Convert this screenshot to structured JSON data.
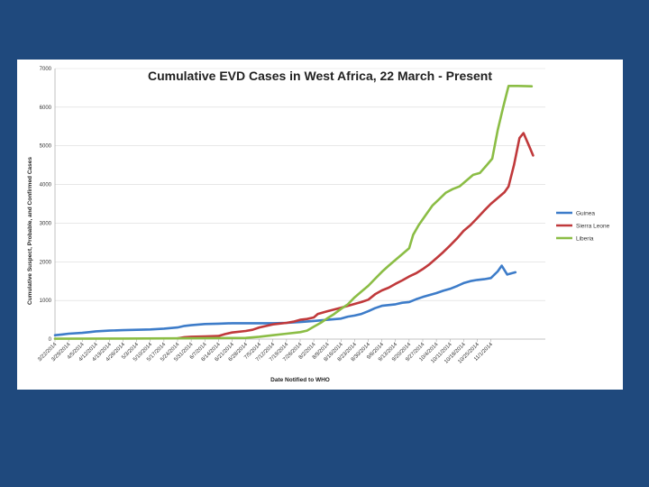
{
  "colors": {
    "background": "#1f497d",
    "card": "#ffffff",
    "guinea": "#3d7cc9",
    "sierra_leone": "#c0393b",
    "liberia": "#8bbd45"
  },
  "chart_data": {
    "type": "line",
    "title": "Cumulative EVD Cases in West Africa, 22 March - Present",
    "xlabel": "Date Notified to WHO",
    "ylabel": "Cumulative Suspect, Probable, and Confirmed Cases",
    "ylim": [
      0,
      7000
    ],
    "yticks": [
      "0",
      "1000",
      "2000",
      "3000",
      "4000",
      "5000",
      "6000",
      "7000"
    ],
    "x_tick_labels": [
      "3/22/2014",
      "3/29/2014",
      "4/5/2014",
      "4/12/2014",
      "4/19/2014",
      "4/26/2014",
      "5/3/2014",
      "5/10/2014",
      "5/17/2014",
      "5/24/2014",
      "5/31/2014",
      "6/7/2014",
      "6/14/2014",
      "6/21/2014",
      "6/28/2014",
      "7/5/2014",
      "7/12/2014",
      "7/19/2014",
      "7/26/2014",
      "8/2/2014",
      "8/9/2014",
      "8/16/2014",
      "8/23/2014",
      "8/30/2014",
      "9/6/2014",
      "9/13/2014",
      "9/20/2014",
      "9/27/2014",
      "10/4/2014",
      "10/11/2014",
      "10/18/2014",
      "10/25/2014",
      "11/1/2014"
    ],
    "legend_position": "right",
    "series": [
      {
        "name": "Guinea",
        "color": "#3d7cc9",
        "points": [
          [
            0,
            100
          ],
          [
            0.5,
            120
          ],
          [
            1,
            140
          ],
          [
            2,
            160
          ],
          [
            2.5,
            180
          ],
          [
            3,
            200
          ],
          [
            4,
            220
          ],
          [
            5,
            230
          ],
          [
            6,
            240
          ],
          [
            7,
            250
          ],
          [
            8,
            270
          ],
          [
            9,
            300
          ],
          [
            9.5,
            340
          ],
          [
            10,
            360
          ],
          [
            11,
            390
          ],
          [
            12,
            400
          ],
          [
            13,
            410
          ],
          [
            14,
            410
          ],
          [
            15,
            410
          ],
          [
            16,
            410
          ],
          [
            17,
            420
          ],
          [
            18,
            440
          ],
          [
            19,
            470
          ],
          [
            20,
            500
          ],
          [
            21,
            530
          ],
          [
            21.5,
            580
          ],
          [
            22,
            610
          ],
          [
            22.5,
            650
          ],
          [
            23,
            720
          ],
          [
            23.5,
            800
          ],
          [
            24,
            860
          ],
          [
            25,
            900
          ],
          [
            25.5,
            940
          ],
          [
            26,
            960
          ],
          [
            26.5,
            1030
          ],
          [
            27,
            1090
          ],
          [
            28,
            1190
          ],
          [
            28.5,
            1250
          ],
          [
            29,
            1300
          ],
          [
            29.5,
            1370
          ],
          [
            30,
            1450
          ],
          [
            30.5,
            1500
          ],
          [
            31,
            1530
          ],
          [
            31.5,
            1550
          ],
          [
            32,
            1580
          ],
          [
            32.5,
            1750
          ],
          [
            32.8,
            1900
          ],
          [
            33.2,
            1670
          ],
          [
            33.8,
            1730
          ]
        ]
      },
      {
        "name": "Sierra Leone",
        "color": "#c0393b",
        "points": [
          [
            9,
            20
          ],
          [
            9.5,
            50
          ],
          [
            10,
            60
          ],
          [
            11,
            70
          ],
          [
            12,
            80
          ],
          [
            12.5,
            130
          ],
          [
            13,
            170
          ],
          [
            14,
            210
          ],
          [
            14.5,
            240
          ],
          [
            15,
            300
          ],
          [
            16,
            380
          ],
          [
            17,
            420
          ],
          [
            17.5,
            450
          ],
          [
            18,
            500
          ],
          [
            18.5,
            520
          ],
          [
            19,
            560
          ],
          [
            19.3,
            650
          ],
          [
            20,
            720
          ],
          [
            21,
            810
          ],
          [
            21.5,
            860
          ],
          [
            22,
            910
          ],
          [
            22.5,
            960
          ],
          [
            23,
            1020
          ],
          [
            23.5,
            1160
          ],
          [
            24,
            1260
          ],
          [
            24.5,
            1330
          ],
          [
            25,
            1430
          ],
          [
            25.5,
            1520
          ],
          [
            26,
            1620
          ],
          [
            26.5,
            1700
          ],
          [
            27,
            1810
          ],
          [
            27.5,
            1940
          ],
          [
            28,
            2090
          ],
          [
            28.5,
            2250
          ],
          [
            29,
            2420
          ],
          [
            29.5,
            2600
          ],
          [
            30,
            2800
          ],
          [
            30.5,
            2950
          ],
          [
            31,
            3130
          ],
          [
            31.5,
            3320
          ],
          [
            32,
            3500
          ],
          [
            32.5,
            3650
          ],
          [
            33,
            3800
          ],
          [
            33.3,
            3950
          ],
          [
            33.7,
            4500
          ],
          [
            34.1,
            5200
          ],
          [
            34.4,
            5330
          ],
          [
            34.8,
            5000
          ],
          [
            35.1,
            4750
          ]
        ]
      },
      {
        "name": "Liberia",
        "color": "#8bbd45",
        "points": [
          [
            0,
            10
          ],
          [
            5,
            15
          ],
          [
            10,
            20
          ],
          [
            14,
            30
          ],
          [
            15,
            60
          ],
          [
            16,
            100
          ],
          [
            17,
            140
          ],
          [
            18,
            180
          ],
          [
            18.5,
            220
          ],
          [
            19,
            320
          ],
          [
            19.5,
            420
          ],
          [
            20,
            540
          ],
          [
            20.5,
            650
          ],
          [
            21,
            780
          ],
          [
            21.5,
            900
          ],
          [
            22,
            1080
          ],
          [
            22.5,
            1230
          ],
          [
            23,
            1380
          ],
          [
            23.5,
            1560
          ],
          [
            24,
            1740
          ],
          [
            24.5,
            1900
          ],
          [
            25,
            2050
          ],
          [
            25.5,
            2200
          ],
          [
            26,
            2350
          ],
          [
            26.3,
            2700
          ],
          [
            26.7,
            2950
          ],
          [
            27.2,
            3200
          ],
          [
            27.7,
            3450
          ],
          [
            28.2,
            3620
          ],
          [
            28.7,
            3790
          ],
          [
            29.2,
            3880
          ],
          [
            29.7,
            3950
          ],
          [
            30.2,
            4100
          ],
          [
            30.7,
            4250
          ],
          [
            31.2,
            4300
          ],
          [
            31.7,
            4500
          ],
          [
            32.1,
            4670
          ],
          [
            32.5,
            5400
          ],
          [
            32.9,
            6000
          ],
          [
            33.3,
            6550
          ],
          [
            34,
            6550
          ],
          [
            35,
            6540
          ]
        ]
      }
    ]
  }
}
